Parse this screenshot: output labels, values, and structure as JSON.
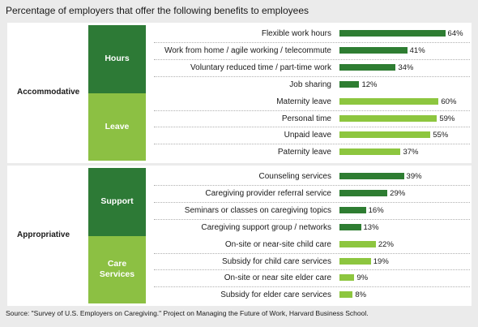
{
  "title": "Percentage of employers that offer the following benefits to employees",
  "source": "Source: \"Survey of U.S. Employers on Caregiving.\" Project on Managing the Future of Work, Harvard Business School.",
  "colors": {
    "dark_green": "#2e7d32",
    "light_green": "#8dc63f",
    "dark_box": "#2d7a36",
    "light_box": "#8cc043"
  },
  "chart_data": {
    "type": "bar",
    "orientation": "horizontal",
    "title": "Percentage of employers that offer the following benefits to employees",
    "xlim": [
      0,
      100
    ],
    "unit": "%",
    "groups": [
      {
        "name": "Accommodative",
        "categories": [
          {
            "name": "Hours",
            "color": "#2e7d32",
            "items": [
              {
                "label": "Flexible work hours",
                "value": 64
              },
              {
                "label": "Work from home / agile working / telecommute",
                "value": 41
              },
              {
                "label": "Voluntary reduced time / part-time work",
                "value": 34
              },
              {
                "label": "Job sharing",
                "value": 12
              }
            ]
          },
          {
            "name": "Leave",
            "color": "#8dc63f",
            "items": [
              {
                "label": "Maternity leave",
                "value": 60
              },
              {
                "label": "Personal time",
                "value": 59
              },
              {
                "label": "Unpaid leave",
                "value": 55
              },
              {
                "label": "Paternity leave",
                "value": 37
              }
            ]
          }
        ]
      },
      {
        "name": "Appropriative",
        "categories": [
          {
            "name": "Support",
            "color": "#2e7d32",
            "items": [
              {
                "label": "Counseling services",
                "value": 39
              },
              {
                "label": "Caregiving provider referral service",
                "value": 29
              },
              {
                "label": "Seminars or classes on caregiving topics",
                "value": 16
              },
              {
                "label": "Caregiving support group / networks",
                "value": 13
              }
            ]
          },
          {
            "name": "Care Services",
            "color": "#8dc63f",
            "items": [
              {
                "label": "On-site or near-site child care",
                "value": 22
              },
              {
                "label": "Subsidy for child care services",
                "value": 19
              },
              {
                "label": "On-site or near site elder care",
                "value": 9
              },
              {
                "label": "Subsidy for elder care services",
                "value": 8
              }
            ]
          }
        ]
      }
    ]
  }
}
